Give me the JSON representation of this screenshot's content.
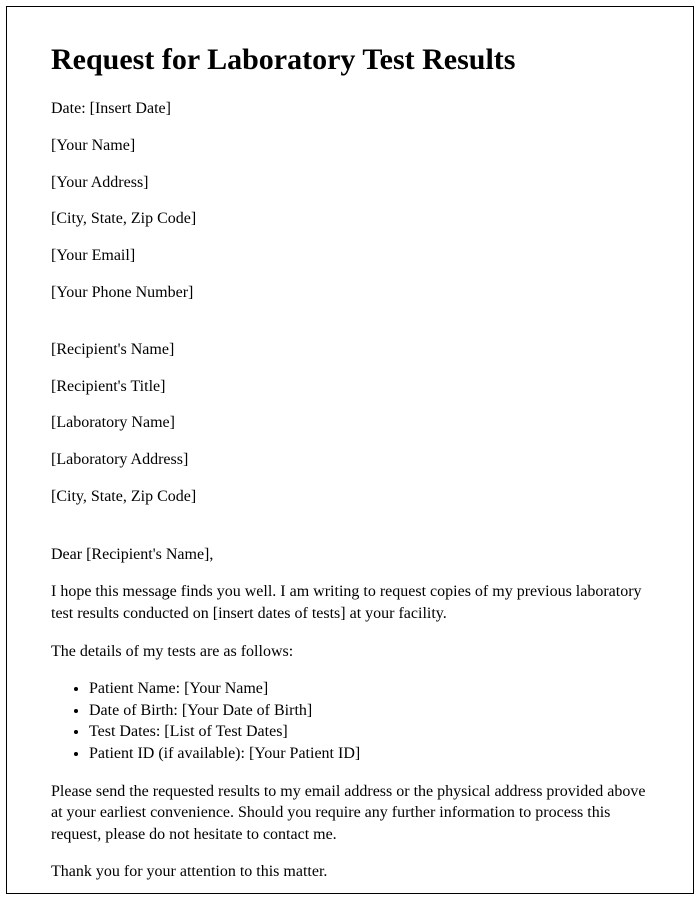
{
  "title": "Request for Laboratory Test Results",
  "sender": {
    "date": "Date: [Insert Date]",
    "name": "[Your Name]",
    "address": "[Your Address]",
    "cityStateZip": "[City, State, Zip Code]",
    "email": "[Your Email]",
    "phone": "[Your Phone Number]"
  },
  "recipient": {
    "name": "[Recipient's Name]",
    "title": "[Recipient's Title]",
    "labName": "[Laboratory Name]",
    "labAddress": "[Laboratory Address]",
    "cityStateZip": "[City, State, Zip Code]"
  },
  "salutation": "Dear [Recipient's Name],",
  "body": {
    "intro": "I hope this message finds you well. I am writing to request copies of my previous laboratory test results conducted on [insert dates of tests] at your facility.",
    "detailsLead": "The details of my tests are as follows:",
    "bullets": {
      "b0": "Patient Name: [Your Name]",
      "b1": "Date of Birth: [Your Date of Birth]",
      "b2": "Test Dates: [List of Test Dates]",
      "b3": "Patient ID (if available): [Your Patient ID]"
    },
    "request": "Please send the requested results to my email address or the physical address provided above at your earliest convenience. Should you require any further information to process this request, please do not hesitate to contact me.",
    "thanks": "Thank you for your attention to this matter."
  }
}
